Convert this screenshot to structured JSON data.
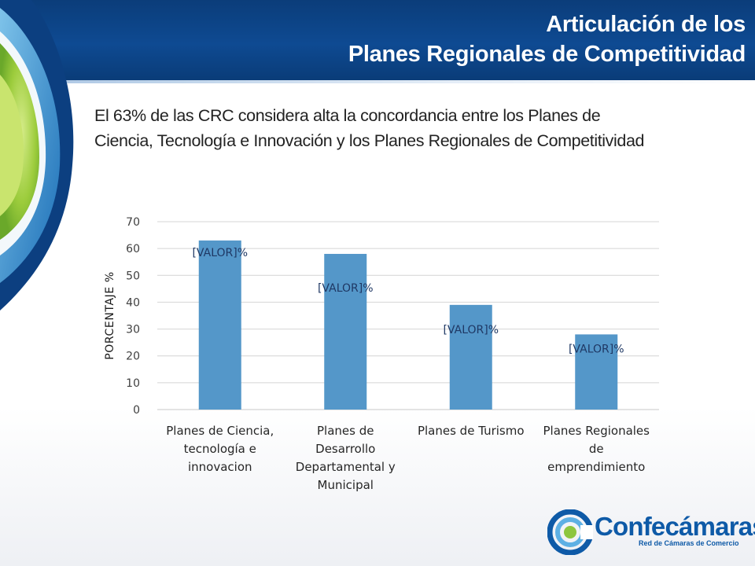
{
  "slide": {
    "title_line1": "Articulación de los",
    "title_line2": "Planes Regionales de Competitividad",
    "subtitle_line1": "El 63% de las CRC considera alta la concordancia entre los Planes de",
    "subtitle_line2": "Ciencia, Tecnología e Innovación y  los Planes Regionales de Competitividad"
  },
  "logo": {
    "name_part1": "Confe",
    "name_part2": "cámaras",
    "tagline": "Red de Cámaras de Comercio"
  },
  "colors": {
    "header": "#0e4a92",
    "bar": "#5497c9",
    "logo_blue": "#0e5aa7",
    "logo_green": "#8dc63f"
  },
  "chart_data": {
    "type": "bar",
    "title": "",
    "xlabel": "",
    "ylabel": "PORCENTAJE  %",
    "ylim": [
      0,
      70
    ],
    "yticks": [
      0,
      10,
      20,
      30,
      40,
      50,
      60,
      70
    ],
    "grid": true,
    "legend": "none",
    "categories": [
      [
        "Planes de Ciencia,",
        "tecnología e",
        "innovacion"
      ],
      [
        "Planes de",
        "Desarrollo",
        "Departamental y",
        "Municipal"
      ],
      [
        "Planes de Turismo"
      ],
      [
        "Planes Regionales",
        "de",
        "emprendimiento"
      ]
    ],
    "values": [
      63,
      58,
      39,
      28
    ],
    "data_labels": [
      "[VALOR]%",
      "[VALOR]%",
      "[VALOR]%",
      "[VALOR]%"
    ]
  }
}
